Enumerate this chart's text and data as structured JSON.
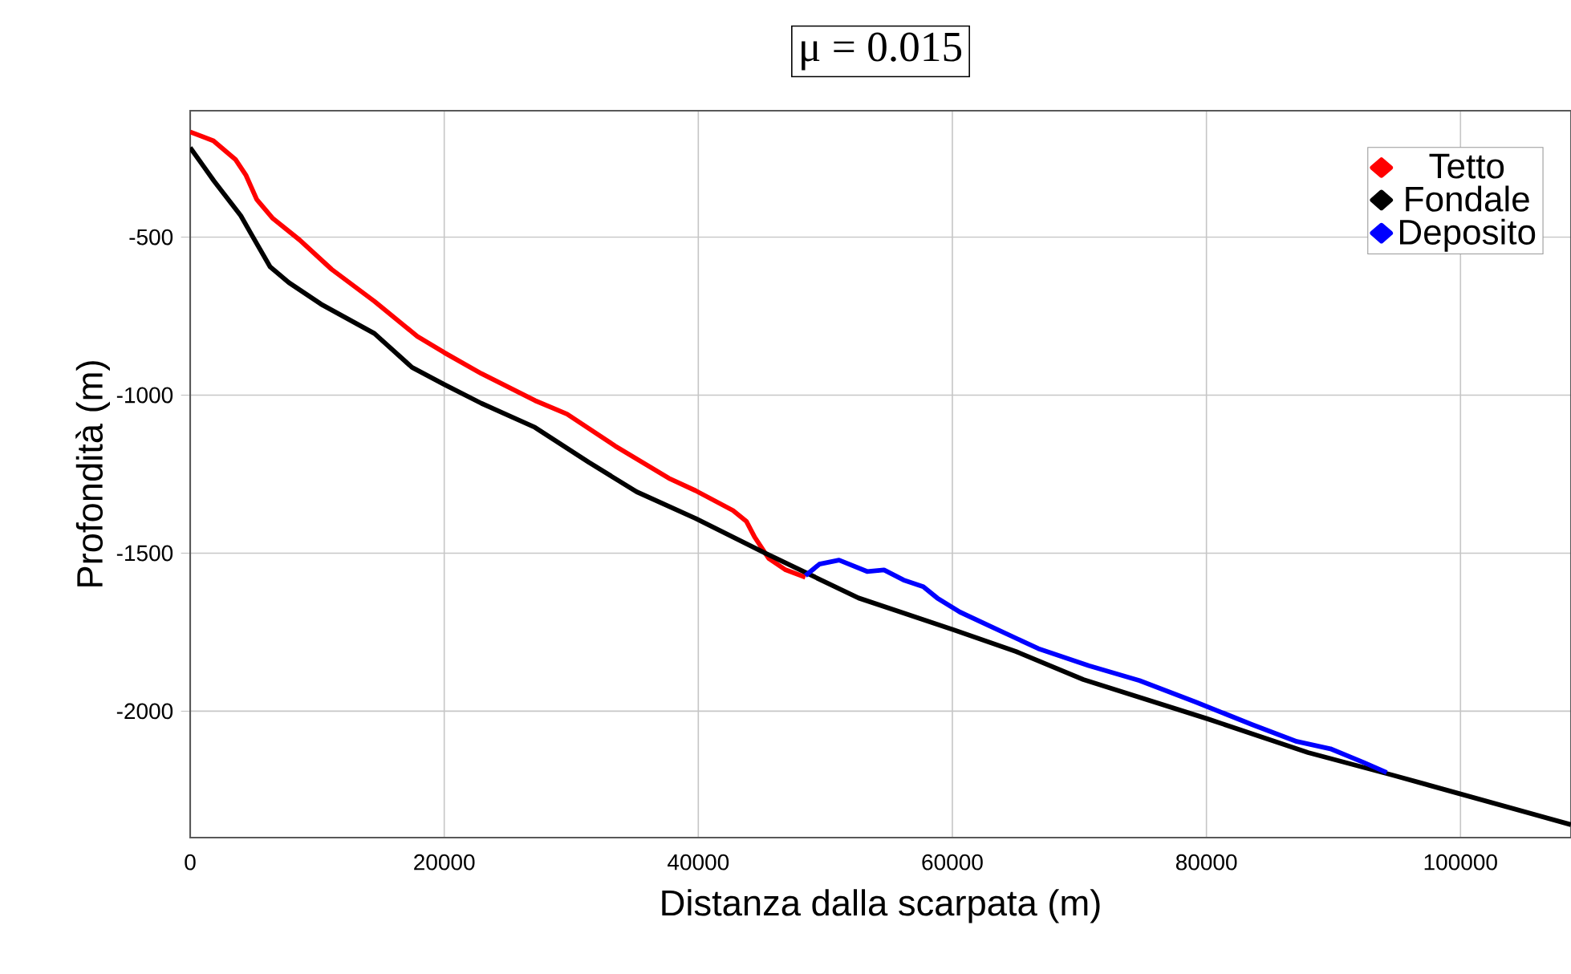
{
  "chart_data": {
    "type": "line",
    "title": "μ = 0.015",
    "xlabel": "Distanza dalla scarpata (m)",
    "ylabel": "Profondità (m)",
    "xlim": [
      0,
      108700
    ],
    "ylim": [
      -2400,
      -100
    ],
    "xticks": [
      0,
      20000,
      40000,
      60000,
      80000,
      100000
    ],
    "yticks": [
      -2000,
      -1500,
      -1000,
      -500
    ],
    "grid": true,
    "legend": "top right",
    "line_style": "solid",
    "series": [
      {
        "name": "Tetto",
        "color": "#ff0000",
        "x": [
          0,
          1830,
          3560,
          4400,
          5240,
          6510,
          8620,
          11140,
          14500,
          17880,
          19990,
          22930,
          27140,
          29670,
          33460,
          37680,
          39780,
          42730,
          43780,
          44450,
          45260,
          45550,
          46880,
          48430
        ],
        "values": [
          -167,
          -195,
          -254,
          -305,
          -381,
          -441,
          -509,
          -602,
          -703,
          -814,
          -865,
          -932,
          -1017,
          -1060,
          -1161,
          -1263,
          -1302,
          -1365,
          -1399,
          -1450,
          -1500,
          -1517,
          -1553,
          -1576
        ]
      },
      {
        "name": "Fondale",
        "color": "#000000",
        "x": [
          0,
          1870,
          3980,
          4830,
          6290,
          7770,
          10300,
          14500,
          17460,
          19990,
          22930,
          27140,
          31360,
          35150,
          39780,
          45260,
          52620,
          60140,
          65000,
          70310,
          80070,
          88000,
          94630,
          108690
        ],
        "values": [
          -217,
          -322,
          -432,
          -492,
          -594,
          -644,
          -712,
          -805,
          -912,
          -966,
          -1026,
          -1102,
          -1212,
          -1306,
          -1390,
          -1500,
          -1642,
          -1743,
          -1811,
          -1900,
          -2024,
          -2131,
          -2202,
          -2359
        ]
      },
      {
        "name": "Deposito",
        "color": "#0000ff",
        "x": [
          48430,
          49530,
          51080,
          53290,
          54620,
          56160,
          57710,
          58810,
          60580,
          63230,
          66770,
          70750,
          74730,
          79150,
          83570,
          87110,
          89760,
          92420,
          94190
        ],
        "values": [
          -1571,
          -1535,
          -1522,
          -1558,
          -1553,
          -1585,
          -1606,
          -1642,
          -1686,
          -1736,
          -1802,
          -1856,
          -1903,
          -1971,
          -2042,
          -2096,
          -2119,
          -2163,
          -2194
        ]
      }
    ]
  }
}
